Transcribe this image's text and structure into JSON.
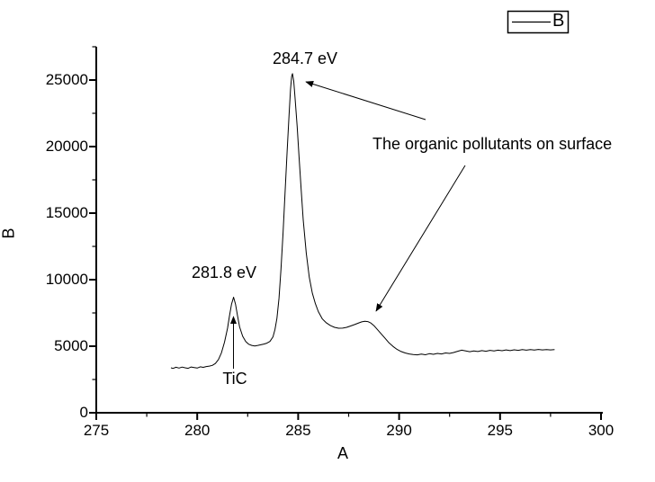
{
  "figure": {
    "background": "#ffffff",
    "axis_color": "#000000",
    "line_color": "#000000"
  },
  "chart_data": {
    "type": "line",
    "title": "",
    "xlabel": "A",
    "ylabel": "B",
    "xlim": [
      275,
      300
    ],
    "ylim": [
      0,
      27500
    ],
    "xticks": [
      275,
      280,
      285,
      290,
      295,
      300
    ],
    "yticks": [
      0,
      5000,
      10000,
      15000,
      20000,
      25000
    ],
    "x_minor_ticks": [
      277.5,
      282.5,
      287.5,
      292.5,
      297.5
    ],
    "y_minor_ticks": [
      2500,
      7500,
      12500,
      17500,
      22500,
      27500
    ],
    "grid": false,
    "legend": {
      "position": "top-right",
      "entries": [
        {
          "label": "B",
          "line_color": "#000000"
        }
      ]
    },
    "annotations": [
      {
        "id": "peak-main",
        "text": "284.7 eV",
        "target_a": 284.7,
        "target_b": 25480
      },
      {
        "id": "peak-tic",
        "text": "281.8 eV",
        "target_a": 281.8,
        "target_b": 8680
      },
      {
        "id": "tic",
        "text": "TiC",
        "target_a": 281.8,
        "target_b": 8680
      },
      {
        "id": "organic",
        "text": "The organic pollutants on surface",
        "target_a": 288.5,
        "target_b": 6900
      }
    ],
    "series": [
      {
        "name": "B",
        "points": [
          [
            278.7,
            3380
          ],
          [
            278.8,
            3330
          ],
          [
            278.95,
            3420
          ],
          [
            279.1,
            3360
          ],
          [
            279.25,
            3430
          ],
          [
            279.4,
            3380
          ],
          [
            279.55,
            3340
          ],
          [
            279.7,
            3440
          ],
          [
            279.85,
            3400
          ],
          [
            280.0,
            3360
          ],
          [
            280.15,
            3450
          ],
          [
            280.3,
            3410
          ],
          [
            280.45,
            3470
          ],
          [
            280.6,
            3510
          ],
          [
            280.75,
            3560
          ],
          [
            280.9,
            3700
          ],
          [
            281.05,
            4000
          ],
          [
            281.2,
            4500
          ],
          [
            281.35,
            5300
          ],
          [
            281.5,
            6350
          ],
          [
            281.6,
            7300
          ],
          [
            281.7,
            8150
          ],
          [
            281.8,
            8680
          ],
          [
            281.9,
            8150
          ],
          [
            282.0,
            7250
          ],
          [
            282.1,
            6450
          ],
          [
            282.25,
            5750
          ],
          [
            282.4,
            5350
          ],
          [
            282.55,
            5150
          ],
          [
            282.7,
            5060
          ],
          [
            282.85,
            5020
          ],
          [
            283.0,
            5060
          ],
          [
            283.15,
            5110
          ],
          [
            283.3,
            5160
          ],
          [
            283.45,
            5230
          ],
          [
            283.6,
            5360
          ],
          [
            283.75,
            5700
          ],
          [
            283.85,
            6250
          ],
          [
            283.95,
            7100
          ],
          [
            284.05,
            8600
          ],
          [
            284.15,
            10800
          ],
          [
            284.25,
            13500
          ],
          [
            284.35,
            16500
          ],
          [
            284.45,
            19600
          ],
          [
            284.55,
            22400
          ],
          [
            284.62,
            24300
          ],
          [
            284.68,
            25300
          ],
          [
            284.72,
            25480
          ],
          [
            284.78,
            24900
          ],
          [
            284.85,
            23600
          ],
          [
            284.95,
            21500
          ],
          [
            285.05,
            19100
          ],
          [
            285.15,
            16700
          ],
          [
            285.25,
            14500
          ],
          [
            285.4,
            12000
          ],
          [
            285.55,
            10200
          ],
          [
            285.7,
            9000
          ],
          [
            285.85,
            8200
          ],
          [
            286.0,
            7600
          ],
          [
            286.2,
            7050
          ],
          [
            286.4,
            6750
          ],
          [
            286.6,
            6550
          ],
          [
            286.8,
            6420
          ],
          [
            287.0,
            6350
          ],
          [
            287.2,
            6360
          ],
          [
            287.4,
            6420
          ],
          [
            287.6,
            6520
          ],
          [
            287.8,
            6630
          ],
          [
            288.0,
            6750
          ],
          [
            288.15,
            6830
          ],
          [
            288.3,
            6880
          ],
          [
            288.45,
            6850
          ],
          [
            288.6,
            6740
          ],
          [
            288.75,
            6550
          ],
          [
            288.9,
            6300
          ],
          [
            289.1,
            5950
          ],
          [
            289.3,
            5600
          ],
          [
            289.5,
            5250
          ],
          [
            289.7,
            4980
          ],
          [
            289.9,
            4760
          ],
          [
            290.1,
            4600
          ],
          [
            290.3,
            4490
          ],
          [
            290.5,
            4420
          ],
          [
            290.7,
            4370
          ],
          [
            290.9,
            4350
          ],
          [
            291.1,
            4410
          ],
          [
            291.3,
            4360
          ],
          [
            291.5,
            4440
          ],
          [
            291.7,
            4390
          ],
          [
            291.9,
            4460
          ],
          [
            292.1,
            4420
          ],
          [
            292.3,
            4490
          ],
          [
            292.5,
            4460
          ],
          [
            292.7,
            4530
          ],
          [
            292.9,
            4620
          ],
          [
            293.1,
            4700
          ],
          [
            293.3,
            4640
          ],
          [
            293.5,
            4590
          ],
          [
            293.7,
            4650
          ],
          [
            293.9,
            4600
          ],
          [
            294.1,
            4670
          ],
          [
            294.3,
            4620
          ],
          [
            294.5,
            4690
          ],
          [
            294.7,
            4640
          ],
          [
            294.9,
            4700
          ],
          [
            295.1,
            4660
          ],
          [
            295.3,
            4720
          ],
          [
            295.5,
            4670
          ],
          [
            295.7,
            4730
          ],
          [
            295.9,
            4690
          ],
          [
            296.1,
            4740
          ],
          [
            296.3,
            4700
          ],
          [
            296.5,
            4750
          ],
          [
            296.7,
            4710
          ],
          [
            296.9,
            4760
          ],
          [
            297.1,
            4720
          ],
          [
            297.3,
            4750
          ],
          [
            297.5,
            4720
          ],
          [
            297.7,
            4740
          ]
        ]
      }
    ]
  }
}
